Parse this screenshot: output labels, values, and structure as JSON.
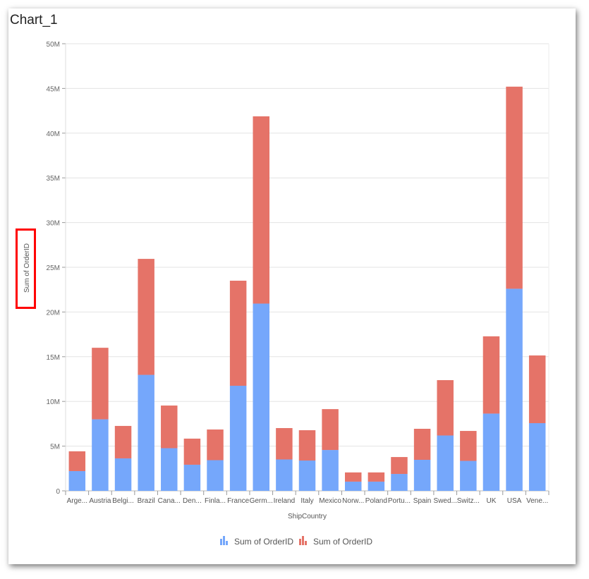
{
  "title": "Chart_1",
  "chart_data": {
    "type": "bar",
    "stacked": true,
    "xlabel": "ShipCountry",
    "ylabel": "Sum of OrderID",
    "ylim": [
      0,
      50000000
    ],
    "yticks": [
      "0",
      "5M",
      "10M",
      "15M",
      "20M",
      "25M",
      "30M",
      "35M",
      "40M",
      "45M",
      "50M"
    ],
    "grid": true,
    "legend_position": "bottom",
    "categories": [
      "Arge...",
      "Austria",
      "Belgi...",
      "Brazil",
      "Cana...",
      "Den...",
      "Finla...",
      "France",
      "Germ...",
      "Ireland",
      "Italy",
      "Mexico",
      "Norw...",
      "Poland",
      "Portu...",
      "Spain",
      "Swed...",
      "Switz...",
      "UK",
      "USA",
      "Vene..."
    ],
    "series": [
      {
        "name": "Sum of OrderID",
        "color": "#75a7fb",
        "values": [
          2.21,
          8.0,
          3.63,
          12.97,
          4.77,
          2.92,
          3.43,
          11.75,
          20.94,
          3.51,
          3.39,
          4.57,
          1.03,
          1.03,
          1.89,
          3.47,
          6.19,
          3.35,
          8.64,
          22.6,
          7.57
        ]
      },
      {
        "name": "Sum of OrderID",
        "color": "#e57368",
        "values": [
          2.21,
          8.0,
          3.63,
          12.97,
          4.77,
          2.92,
          3.43,
          11.75,
          20.94,
          3.51,
          3.39,
          4.57,
          1.03,
          1.03,
          1.89,
          3.47,
          6.19,
          3.35,
          8.64,
          22.6,
          7.57
        ]
      }
    ],
    "value_unit": "M"
  }
}
